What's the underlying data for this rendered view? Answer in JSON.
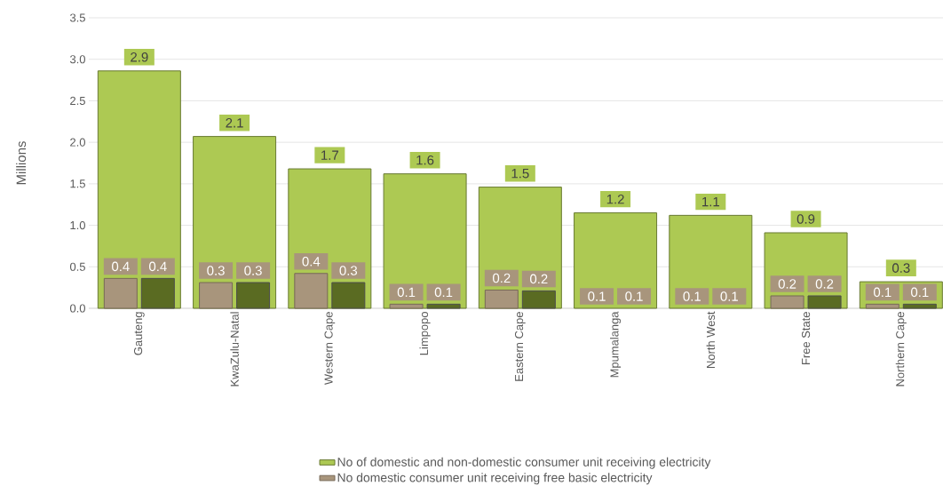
{
  "chart_data": {
    "type": "bar",
    "ylabel": "Millions",
    "categories": [
      "Gauteng",
      "KwaZulu-Natal",
      "Western Cape",
      "Limpopo",
      "Eastern Cape",
      "Mpumalanga",
      "North West",
      "Free State",
      "Northern Cape"
    ],
    "series": [
      {
        "name": "No of domestic and non-domestic consumer unit receiving electricity",
        "color": "#adc953",
        "values": [
          2.86,
          2.07,
          1.68,
          1.62,
          1.46,
          1.15,
          1.12,
          0.91,
          0.32
        ],
        "value_labels": [
          "2.9",
          "2.1",
          "1.7",
          "1.6",
          "1.5",
          "1.2",
          "1.1",
          "0.9",
          "0.3"
        ]
      },
      {
        "name": "No domestic consumer unit receiving  free basic electricity",
        "color": "#a8957c",
        "values": [
          0.36,
          0.31,
          0.42,
          0.05,
          0.22,
          null,
          null,
          0.15,
          0.05
        ],
        "value_labels": [
          "0.4",
          "0.3",
          "0.4",
          "0.1",
          "0.2",
          "0.1",
          "0.1",
          "0.2",
          "0.1"
        ]
      },
      {
        "color": "#5a6b22",
        "values": [
          0.36,
          0.31,
          0.31,
          0.05,
          0.21,
          null,
          null,
          0.15,
          0.05
        ],
        "value_labels": [
          "0.4",
          "0.3",
          "0.3",
          "0.1",
          "0.2",
          "0.1",
          "0.1",
          "0.2",
          "0.1"
        ]
      }
    ],
    "ylim": [
      0,
      3.5
    ],
    "yticks": [
      {
        "value": 0,
        "label": "0.0"
      },
      {
        "value": 0.5,
        "label": "0.5"
      },
      {
        "value": 1,
        "label": "1.0"
      },
      {
        "value": 1.5,
        "label": "1.5"
      },
      {
        "value": 2,
        "label": "2.0"
      },
      {
        "value": 2.5,
        "label": "2.5"
      },
      {
        "value": 3,
        "label": "3.0"
      },
      {
        "value": 3.5,
        "label": "3.5"
      }
    ],
    "grid": "y",
    "legend": "bottom"
  }
}
